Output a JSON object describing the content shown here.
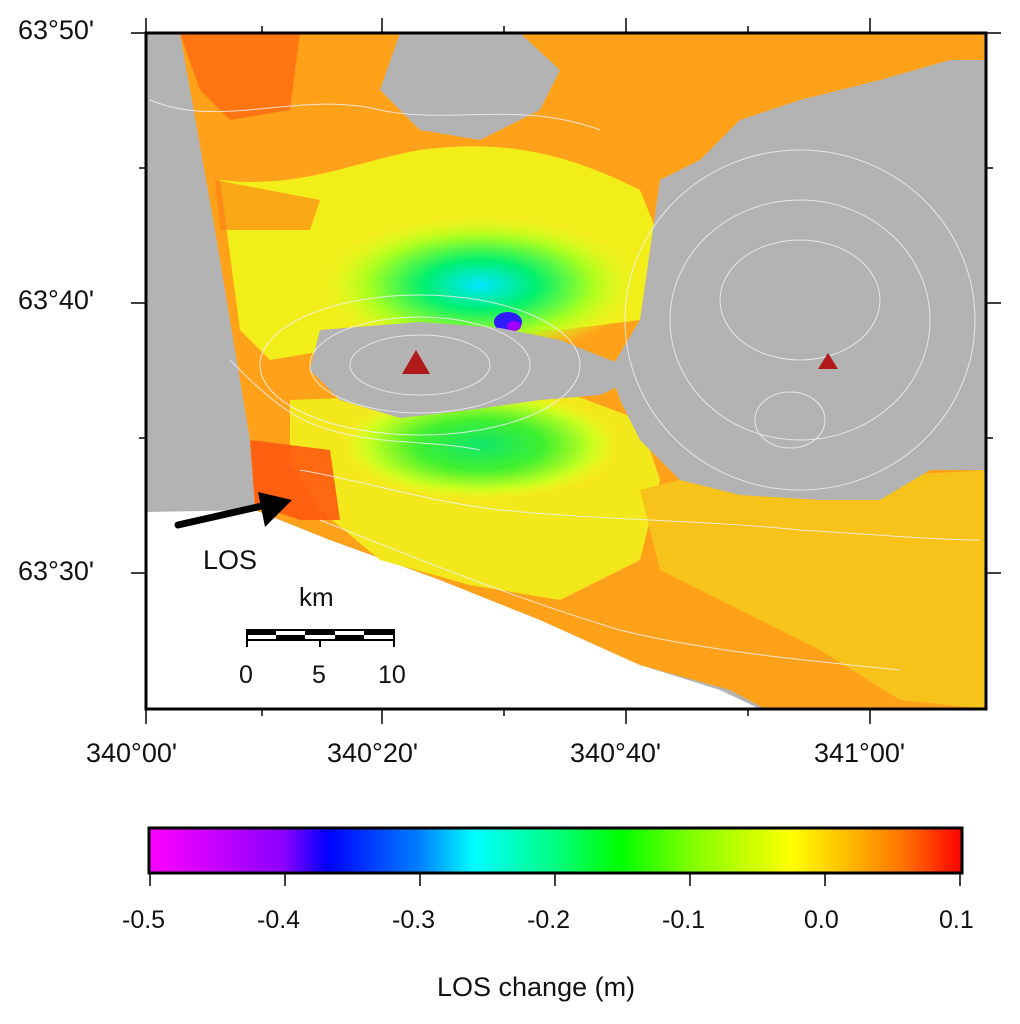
{
  "map": {
    "lat_labels": [
      "63°50'",
      "63°40'",
      "63°30'"
    ],
    "lon_labels": [
      "340°00'",
      "340°20'",
      "340°40'",
      "341°00'"
    ],
    "los_label": "LOS",
    "volcano_marker_color": "#b11a1a"
  },
  "scale_bar": {
    "unit": "km",
    "ticks": [
      "0",
      "5",
      "10"
    ]
  },
  "colorbar": {
    "title": "LOS change (m)",
    "ticks": [
      "-0.5",
      "-0.4",
      "-0.3",
      "-0.2",
      "-0.1",
      "0.0",
      "0.1"
    ],
    "range": [
      -0.5,
      0.1
    ],
    "colors": [
      "#ff00ff",
      "#0000ff",
      "#00ffff",
      "#00ff00",
      "#ffff00",
      "#ff8c00",
      "#ff0000"
    ]
  }
}
